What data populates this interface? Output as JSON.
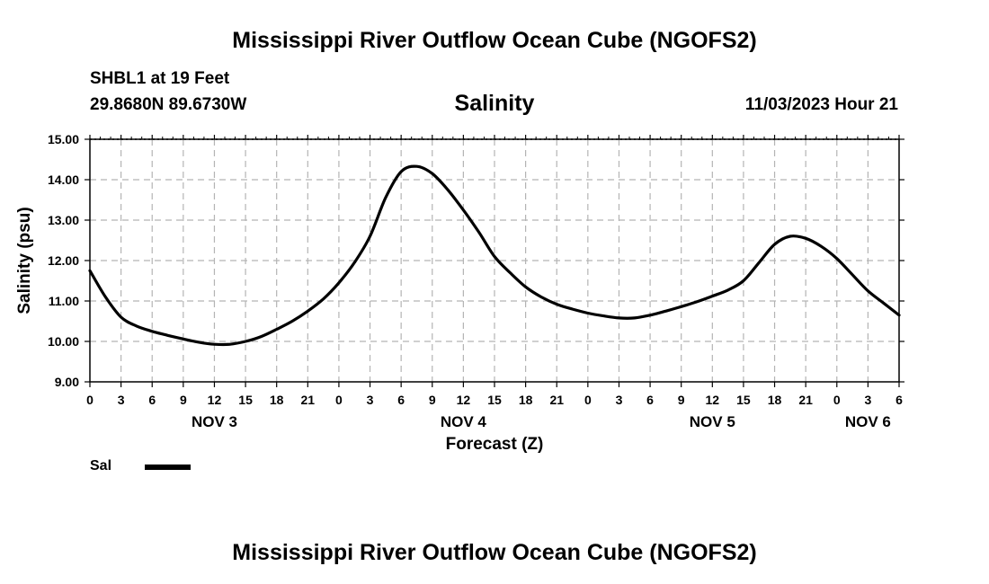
{
  "header": {
    "title": "Mississippi River Outflow Ocean Cube (NGOFS2)",
    "station": "SHBL1 at 19 Feet",
    "coordinates": "29.8680N  89.6730W",
    "metric": "Salinity",
    "timestamp": "11/03/2023 Hour 21"
  },
  "footer": {
    "title": "Mississippi River Outflow Ocean Cube (NGOFS2)"
  },
  "legend": {
    "label": "Sal"
  },
  "chart_data": {
    "type": "line",
    "title": "Salinity",
    "xlabel": "Forecast (Z)",
    "ylabel": "Salinity (psu)",
    "xlim": [
      0,
      78
    ],
    "ylim": [
      9.0,
      15.0
    ],
    "y_ticks": [
      "9.00",
      "10.00",
      "11.00",
      "12.00",
      "13.00",
      "14.00",
      "15.00"
    ],
    "x_ticks": [
      "0",
      "3",
      "6",
      "9",
      "12",
      "15",
      "18",
      "21",
      "0",
      "3",
      "6",
      "9",
      "12",
      "15",
      "18",
      "21",
      "0",
      "3",
      "6",
      "9",
      "12",
      "15",
      "18",
      "21",
      "0",
      "3",
      "6"
    ],
    "day_labels": [
      {
        "label": "NOV 3",
        "hour": 12
      },
      {
        "label": "NOV 4",
        "hour": 36
      },
      {
        "label": "NOV 5",
        "hour": 60
      },
      {
        "label": "NOV 6",
        "hour": 75
      }
    ],
    "grid": true,
    "series": [
      {
        "name": "Sal",
        "x": [
          0,
          1.5,
          3,
          4.5,
          6,
          7.5,
          9,
          10.5,
          12,
          13.5,
          15,
          16.5,
          18,
          19.5,
          21,
          22.5,
          24,
          25.5,
          27,
          28.5,
          30,
          31.5,
          33,
          34.5,
          36,
          37.5,
          39,
          40.5,
          42,
          43.5,
          45,
          46.5,
          48,
          49.5,
          51,
          52.5,
          54,
          55.5,
          57,
          58.5,
          60,
          61.5,
          63,
          64.5,
          66,
          67.5,
          69,
          70.5,
          72,
          73.5,
          75,
          76.5,
          78
        ],
        "values": [
          11.75,
          11.1,
          10.6,
          10.38,
          10.25,
          10.15,
          10.06,
          9.98,
          9.93,
          9.93,
          10.0,
          10.12,
          10.3,
          10.5,
          10.75,
          11.05,
          11.45,
          11.95,
          12.6,
          13.55,
          14.2,
          14.33,
          14.15,
          13.75,
          13.25,
          12.7,
          12.1,
          11.7,
          11.35,
          11.1,
          10.92,
          10.8,
          10.7,
          10.63,
          10.58,
          10.58,
          10.65,
          10.75,
          10.86,
          10.98,
          11.12,
          11.27,
          11.5,
          11.95,
          12.4,
          12.6,
          12.55,
          12.35,
          12.05,
          11.65,
          11.25,
          10.95,
          10.65
        ]
      }
    ]
  }
}
